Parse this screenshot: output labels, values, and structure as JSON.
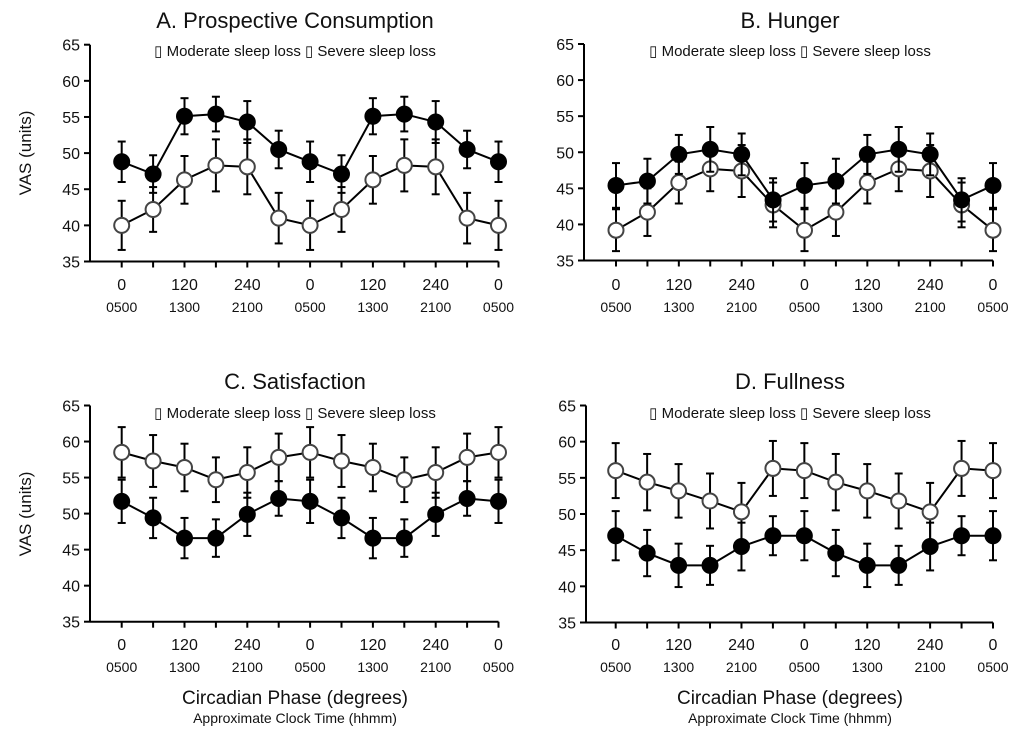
{
  "chart_data": [
    {
      "type": "line",
      "title": "A. Prospective Consumption",
      "ylabel": "VAS (units)",
      "xlabel": "",
      "ylim": [
        35,
        65
      ],
      "yticks": [
        "35",
        "40",
        "45",
        "50",
        "55",
        "60",
        "65"
      ],
      "x": [
        0,
        60,
        120,
        180,
        240,
        300,
        360,
        420,
        480,
        540,
        600,
        660,
        720
      ],
      "xtick_degrees": [
        "0",
        "",
        "120",
        "",
        "240",
        "",
        "0",
        "",
        "120",
        "",
        "240",
        "",
        "0"
      ],
      "xtick_clock": [
        "0500",
        "",
        "1300",
        "",
        "2100",
        "",
        "0500",
        "",
        "1300",
        "",
        "2100",
        "",
        "0500"
      ],
      "legend": [
        "Moderate sleep loss",
        "Severe sleep loss"
      ],
      "legend_marker": "▯",
      "legend_position": "top-center",
      "series": [
        {
          "name": "Moderate sleep loss",
          "marker": "filled-circle",
          "values": [
            48.8,
            47.1,
            55.1,
            55.4,
            54.3,
            50.5,
            48.8,
            47.1,
            55.1,
            55.4,
            54.3,
            50.5,
            48.8
          ],
          "errors": [
            2.8,
            2.6,
            2.5,
            2.4,
            2.9,
            2.6,
            2.8,
            2.6,
            2.5,
            2.4,
            2.9,
            2.6,
            2.8
          ]
        },
        {
          "name": "Severe sleep loss",
          "marker": "open-circle",
          "values": [
            40.0,
            42.2,
            46.3,
            48.3,
            48.1,
            41.0,
            40.0,
            42.2,
            46.3,
            48.3,
            48.1,
            41.0,
            40.0
          ],
          "errors": [
            3.4,
            3.1,
            3.3,
            3.6,
            3.8,
            3.5,
            3.4,
            3.1,
            3.3,
            3.6,
            3.8,
            3.5,
            3.4
          ]
        }
      ]
    },
    {
      "type": "line",
      "title": "B. Hunger",
      "ylabel": "",
      "xlabel": "",
      "ylim": [
        35,
        65
      ],
      "yticks": [
        "35",
        "40",
        "45",
        "50",
        "55",
        "60",
        "65"
      ],
      "x": [
        0,
        60,
        120,
        180,
        240,
        300,
        360,
        420,
        480,
        540,
        600,
        660,
        720
      ],
      "xtick_degrees": [
        "0",
        "",
        "120",
        "",
        "240",
        "",
        "0",
        "",
        "120",
        "",
        "240",
        "",
        "0"
      ],
      "xtick_clock": [
        "0500",
        "",
        "1300",
        "",
        "2100",
        "",
        "0500",
        "",
        "1300",
        "",
        "2100",
        "",
        "0500"
      ],
      "legend": [
        "Moderate sleep loss",
        "Severe sleep loss"
      ],
      "legend_marker": "▯",
      "legend_position": "top-center",
      "series": [
        {
          "name": "Moderate sleep loss",
          "marker": "filled-circle",
          "values": [
            45.4,
            46.0,
            49.7,
            50.4,
            49.7,
            43.4,
            45.4,
            46.0,
            49.7,
            50.4,
            49.7,
            43.4,
            45.4
          ],
          "errors": [
            3.1,
            3.1,
            2.7,
            3.1,
            2.9,
            3.0,
            3.1,
            3.1,
            2.7,
            3.1,
            2.9,
            3.0,
            3.1
          ]
        },
        {
          "name": "Severe sleep loss",
          "marker": "open-circle",
          "values": [
            39.2,
            41.7,
            45.8,
            47.7,
            47.4,
            42.7,
            39.2,
            41.7,
            45.8,
            47.7,
            47.4,
            42.7,
            39.2
          ],
          "errors": [
            2.9,
            3.3,
            2.9,
            3.1,
            3.6,
            3.1,
            2.9,
            3.3,
            2.9,
            3.1,
            3.6,
            3.1,
            2.9
          ]
        }
      ]
    },
    {
      "type": "line",
      "title": "C. Satisfaction",
      "ylabel": "VAS (units)",
      "xlabel": "Circadian Phase (degrees)",
      "xlabel2": "Approximate Clock Time (hhmm)",
      "ylim": [
        35,
        65
      ],
      "yticks": [
        "35",
        "40",
        "45",
        "50",
        "55",
        "60",
        "65"
      ],
      "x": [
        0,
        60,
        120,
        180,
        240,
        300,
        360,
        420,
        480,
        540,
        600,
        660,
        720
      ],
      "xtick_degrees": [
        "0",
        "",
        "120",
        "",
        "240",
        "",
        "0",
        "",
        "120",
        "",
        "240",
        "",
        "0"
      ],
      "xtick_clock": [
        "0500",
        "",
        "1300",
        "",
        "2100",
        "",
        "0500",
        "",
        "1300",
        "",
        "2100",
        "",
        "0500"
      ],
      "legend": [
        "Moderate sleep loss",
        "Severe sleep loss"
      ],
      "legend_marker": "▯",
      "legend_position": "top-center",
      "series": [
        {
          "name": "Moderate sleep loss",
          "marker": "filled-circle",
          "values": [
            51.7,
            49.4,
            46.6,
            46.6,
            49.9,
            52.1,
            51.7,
            49.4,
            46.6,
            46.6,
            49.9,
            52.1,
            51.7
          ],
          "errors": [
            3.0,
            2.8,
            2.8,
            2.6,
            3.0,
            2.4,
            3.0,
            2.8,
            2.8,
            2.6,
            3.0,
            2.4,
            3.0
          ]
        },
        {
          "name": "Severe sleep loss",
          "marker": "open-circle",
          "values": [
            58.5,
            57.3,
            56.4,
            54.7,
            55.7,
            57.8,
            58.5,
            57.3,
            56.4,
            54.7,
            55.7,
            57.8,
            58.5
          ],
          "errors": [
            3.5,
            3.6,
            3.3,
            3.1,
            3.5,
            3.3,
            3.5,
            3.6,
            3.3,
            3.1,
            3.5,
            3.3,
            3.5
          ]
        }
      ]
    },
    {
      "type": "line",
      "title": "D. Fullness",
      "ylabel": "",
      "xlabel": "Circadian Phase (degrees)",
      "xlabel2": "Approximate Clock Time (hhmm)",
      "ylim": [
        35,
        65
      ],
      "yticks": [
        "35",
        "40",
        "45",
        "50",
        "55",
        "60",
        "65"
      ],
      "x": [
        0,
        60,
        120,
        180,
        240,
        300,
        360,
        420,
        480,
        540,
        600,
        660,
        720
      ],
      "xtick_degrees": [
        "0",
        "",
        "120",
        "",
        "240",
        "",
        "0",
        "",
        "120",
        "",
        "240",
        "",
        "0"
      ],
      "xtick_clock": [
        "0500",
        "",
        "1300",
        "",
        "2100",
        "",
        "0500",
        "",
        "1300",
        "",
        "2100",
        "",
        "0500"
      ],
      "legend": [
        "Moderate sleep loss",
        "Severe sleep loss"
      ],
      "legend_marker": "▯",
      "legend_position": "top-center",
      "series": [
        {
          "name": "Moderate sleep loss",
          "marker": "filled-circle",
          "values": [
            47.0,
            44.6,
            42.9,
            42.9,
            45.5,
            47.0,
            47.0,
            44.6,
            42.9,
            42.9,
            45.5,
            47.0,
            47.0
          ],
          "errors": [
            3.4,
            3.2,
            3.0,
            2.7,
            3.3,
            2.7,
            3.4,
            3.2,
            3.0,
            2.7,
            3.3,
            2.7,
            3.4
          ]
        },
        {
          "name": "Severe sleep loss",
          "marker": "open-circle",
          "values": [
            56.0,
            54.4,
            53.2,
            51.8,
            50.3,
            56.3,
            56.0,
            54.4,
            53.2,
            51.8,
            50.3,
            56.3,
            56.0
          ],
          "errors": [
            3.8,
            3.9,
            3.7,
            3.8,
            4.0,
            3.8,
            3.8,
            3.9,
            3.7,
            3.8,
            4.0,
            3.8,
            3.8
          ]
        }
      ]
    }
  ]
}
